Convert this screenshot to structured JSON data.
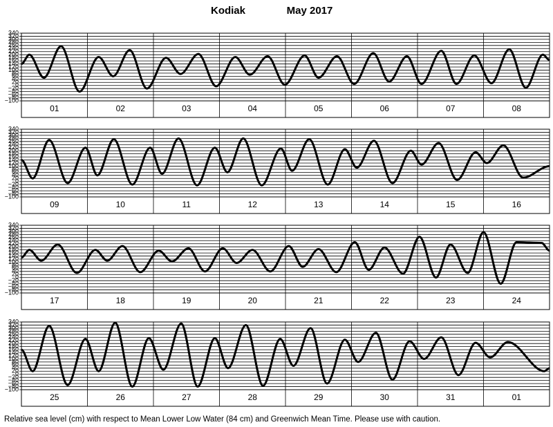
{
  "location": "Kodiak",
  "period": "May 2017",
  "footnote": "Relative sea level (cm) with respect to Mean Lower Low Water (84 cm) and Greenwich Mean Time. Please use with caution.",
  "chart_data": [
    {
      "type": "line",
      "color": "#000000",
      "xlim": [
        0,
        8
      ],
      "ylim": [
        -100,
        340
      ],
      "xticks": [
        {
          "value": 0.5,
          "label": "01"
        },
        {
          "value": 1.5,
          "label": "02"
        },
        {
          "value": 2.5,
          "label": "03"
        },
        {
          "value": 3.5,
          "label": "04"
        },
        {
          "value": 4.5,
          "label": "05"
        },
        {
          "value": 5.5,
          "label": "06"
        },
        {
          "value": 6.5,
          "label": "07"
        },
        {
          "value": 7.5,
          "label": "08"
        }
      ],
      "yticks": [
        340,
        320,
        300,
        280,
        260,
        240,
        220,
        200,
        180,
        160,
        140,
        120,
        100,
        80,
        60,
        40,
        20,
        0,
        {
          "value": -20,
          "label": "−20"
        },
        {
          "value": -40,
          "label": "−40"
        },
        {
          "value": -60,
          "label": "−60"
        },
        {
          "value": -80,
          "label": "−80"
        },
        {
          "value": -100,
          "label": "−100"
        }
      ],
      "x": [
        0,
        0.12,
        0.34,
        0.6,
        0.88,
        1.17,
        1.39,
        1.64,
        1.9,
        2.19,
        2.41,
        2.68,
        2.95,
        3.24,
        3.46,
        3.73,
        3.99,
        4.29,
        4.5,
        4.78,
        5.04,
        5.33,
        5.57,
        5.84,
        6.06,
        6.36,
        6.59,
        6.86,
        7.12,
        7.39,
        7.64,
        7.9,
        8
      ],
      "values": [
        140,
        200,
        50,
        255,
        -40,
        185,
        60,
        230,
        -20,
        180,
        75,
        205,
        -5,
        185,
        70,
        190,
        5,
        195,
        50,
        190,
        10,
        210,
        25,
        190,
        10,
        225,
        10,
        195,
        15,
        235,
        -15,
        200,
        165
      ]
    },
    {
      "type": "line",
      "color": "#000000",
      "xlim": [
        0,
        8
      ],
      "ylim": [
        -100,
        340
      ],
      "xticks": [
        {
          "value": 0.5,
          "label": "09"
        },
        {
          "value": 1.5,
          "label": "10"
        },
        {
          "value": 2.5,
          "label": "11"
        },
        {
          "value": 3.5,
          "label": "12"
        },
        {
          "value": 4.5,
          "label": "13"
        },
        {
          "value": 5.5,
          "label": "14"
        },
        {
          "value": 6.5,
          "label": "15"
        },
        {
          "value": 7.5,
          "label": "16"
        }
      ],
      "yticks": [
        340,
        320,
        300,
        280,
        260,
        240,
        220,
        200,
        180,
        160,
        140,
        120,
        100,
        80,
        60,
        40,
        20,
        0,
        {
          "value": -20,
          "label": "−20"
        },
        {
          "value": -40,
          "label": "−40"
        },
        {
          "value": -60,
          "label": "−60"
        },
        {
          "value": -80,
          "label": "−80"
        },
        {
          "value": -100,
          "label": "−100"
        }
      ],
      "x": [
        0,
        0.17,
        0.42,
        0.7,
        0.97,
        1.15,
        1.4,
        1.68,
        1.95,
        2.13,
        2.38,
        2.66,
        2.93,
        3.12,
        3.36,
        3.64,
        3.93,
        4.1,
        4.36,
        4.64,
        4.9,
        5.08,
        5.34,
        5.62,
        5.9,
        6.06,
        6.32,
        6.6,
        6.88,
        7.05,
        7.3,
        7.6,
        8
      ],
      "values": [
        140,
        20,
        270,
        -10,
        220,
        40,
        275,
        -20,
        220,
        50,
        280,
        -25,
        220,
        60,
        280,
        -25,
        215,
        70,
        275,
        -20,
        210,
        90,
        265,
        -10,
        200,
        110,
        250,
        10,
        190,
        120,
        235,
        25,
        100
      ]
    },
    {
      "type": "line",
      "color": "#000000",
      "xlim": [
        0,
        8
      ],
      "ylim": [
        -100,
        340
      ],
      "xticks": [
        {
          "value": 0.5,
          "label": "17"
        },
        {
          "value": 1.5,
          "label": "18"
        },
        {
          "value": 2.5,
          "label": "19"
        },
        {
          "value": 3.5,
          "label": "20"
        },
        {
          "value": 4.5,
          "label": "21"
        },
        {
          "value": 5.5,
          "label": "22"
        },
        {
          "value": 6.5,
          "label": "23"
        },
        {
          "value": 7.5,
          "label": "24"
        }
      ],
      "yticks": [
        340,
        320,
        300,
        280,
        260,
        240,
        220,
        200,
        180,
        160,
        140,
        120,
        100,
        80,
        60,
        40,
        20,
        0,
        {
          "value": -20,
          "label": "−20"
        },
        {
          "value": -40,
          "label": "−40"
        },
        {
          "value": -60,
          "label": "−60"
        },
        {
          "value": -80,
          "label": "−80"
        },
        {
          "value": -100,
          "label": "−100"
        }
      ],
      "x": [
        0,
        0.12,
        0.3,
        0.55,
        0.84,
        1.12,
        1.3,
        1.53,
        1.8,
        2.08,
        2.28,
        2.53,
        2.78,
        3.05,
        3.26,
        3.5,
        3.77,
        4.05,
        4.26,
        4.5,
        4.77,
        5.05,
        5.26,
        5.5,
        5.78,
        6.03,
        6.28,
        6.5,
        6.76,
        7,
        7.26,
        7.5,
        7.88,
        8
      ],
      "values": [
        130,
        180,
        110,
        215,
        30,
        180,
        110,
        205,
        35,
        175,
        105,
        190,
        40,
        190,
        95,
        180,
        40,
        205,
        70,
        185,
        35,
        230,
        50,
        195,
        25,
        265,
        0,
        215,
        30,
        295,
        -40,
        230,
        225,
        175
      ]
    },
    {
      "type": "line",
      "color": "#000000",
      "xlim": [
        0,
        8
      ],
      "ylim": [
        -100,
        340
      ],
      "xticks": [
        {
          "value": 0.5,
          "label": "25"
        },
        {
          "value": 1.5,
          "label": "26"
        },
        {
          "value": 2.5,
          "label": "27"
        },
        {
          "value": 3.5,
          "label": "28"
        },
        {
          "value": 4.5,
          "label": "29"
        },
        {
          "value": 5.5,
          "label": "30"
        },
        {
          "value": 6.5,
          "label": "31"
        },
        {
          "value": 7.5,
          "label": "01"
        }
      ],
      "yticks": [
        340,
        320,
        300,
        280,
        260,
        240,
        220,
        200,
        180,
        160,
        140,
        120,
        100,
        80,
        60,
        40,
        20,
        0,
        {
          "value": -20,
          "label": "−20"
        },
        {
          "value": -40,
          "label": "−40"
        },
        {
          "value": -60,
          "label": "−60"
        },
        {
          "value": -80,
          "label": "−80"
        },
        {
          "value": -100,
          "label": "−100"
        }
      ],
      "x": [
        0,
        0.17,
        0.42,
        0.7,
        0.97,
        1.17,
        1.42,
        1.68,
        1.93,
        2.15,
        2.42,
        2.67,
        2.93,
        3.13,
        3.4,
        3.66,
        3.92,
        4.12,
        4.38,
        4.63,
        4.9,
        5.1,
        5.37,
        5.62,
        5.88,
        6.1,
        6.36,
        6.62,
        6.88,
        7.1,
        7.37,
        7.92,
        8
      ],
      "values": [
        160,
        20,
        315,
        -70,
        230,
        20,
        335,
        -80,
        235,
        30,
        330,
        -80,
        235,
        40,
        320,
        -75,
        230,
        55,
        300,
        -60,
        225,
        80,
        270,
        -35,
        215,
        100,
        240,
        -5,
        205,
        110,
        210,
        20,
        40
      ]
    }
  ]
}
